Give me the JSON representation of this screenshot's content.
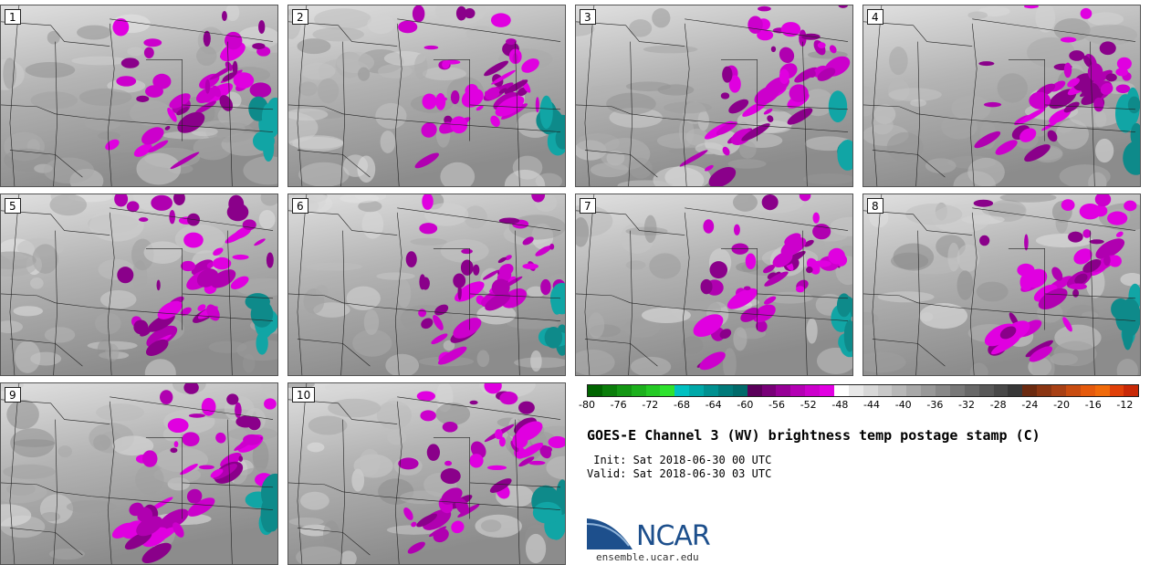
{
  "panels": [
    {
      "label": "1",
      "seed": 11
    },
    {
      "label": "2",
      "seed": 23
    },
    {
      "label": "3",
      "seed": 37
    },
    {
      "label": "4",
      "seed": 41
    },
    {
      "label": "5",
      "seed": 53
    },
    {
      "label": "6",
      "seed": 67
    },
    {
      "label": "7",
      "seed": 71
    },
    {
      "label": "8",
      "seed": 83
    },
    {
      "label": "9",
      "seed": 97
    },
    {
      "label": "10",
      "seed": 101
    }
  ],
  "colorbar": {
    "colors": [
      "#006400",
      "#0a7d0a",
      "#139613",
      "#1cb01c",
      "#24c924",
      "#2ee22e",
      "#00c0c0",
      "#00a8a8",
      "#009090",
      "#007a7a",
      "#006a6a",
      "#5a005a",
      "#780078",
      "#960096",
      "#b400b4",
      "#cc00cc",
      "#e200e2",
      "#ffffff",
      "#e8e8e8",
      "#d8d8d8",
      "#c8c8c8",
      "#b8b8b8",
      "#a8a8a8",
      "#989898",
      "#888888",
      "#787878",
      "#686868",
      "#585858",
      "#484848",
      "#383838",
      "#6b2a10",
      "#8a3512",
      "#a84014",
      "#c84c10",
      "#e55a0c",
      "#f06a0a",
      "#e04008",
      "#c82806"
    ],
    "ticks": [
      "-80",
      "-76",
      "-72",
      "-68",
      "-64",
      "-60",
      "-56",
      "-52",
      "-48",
      "-44",
      "-40",
      "-36",
      "-32",
      "-28",
      "-24",
      "-20",
      "-16",
      "-12"
    ]
  },
  "title": "GOES-E Channel 3 (WV) brightness temp postage stamp (C)",
  "init": " Init: Sat 2018-06-30 00 UTC",
  "valid": "Valid: Sat 2018-06-30 03 UTC",
  "logo_text": "NCAR",
  "url": "ensemble.ucar.edu",
  "logo_colors": {
    "arc": "#1d4f8c",
    "accent": "#8fb3d9"
  }
}
